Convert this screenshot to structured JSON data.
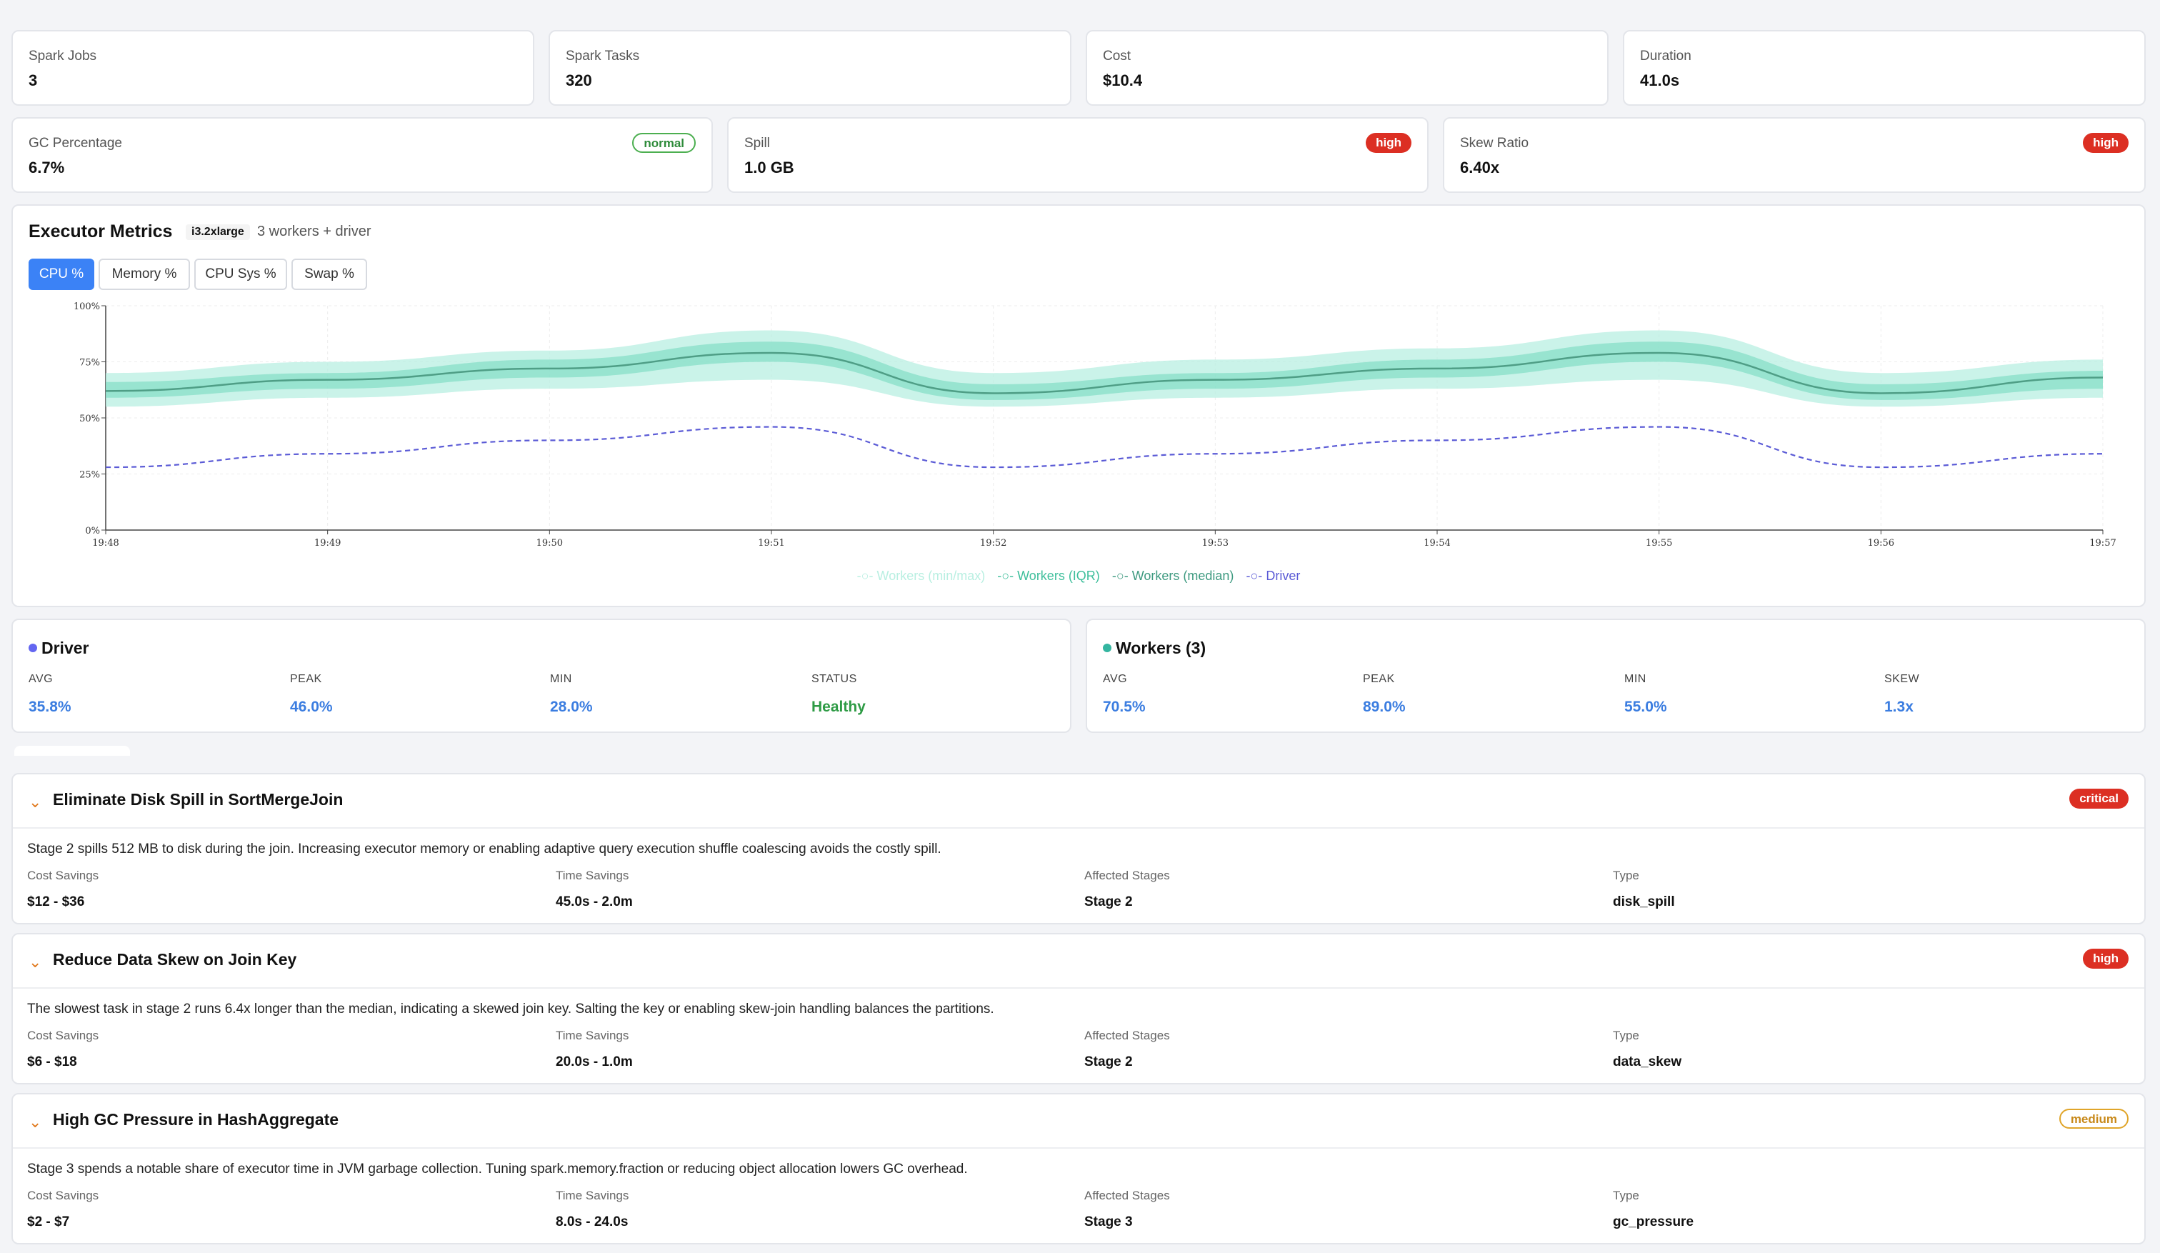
{
  "stats_row1": [
    {
      "label": "Spark Jobs",
      "value": "3"
    },
    {
      "label": "Spark Tasks",
      "value": "320"
    },
    {
      "label": "Cost",
      "value": "$10.4"
    },
    {
      "label": "Duration",
      "value": "41.0s"
    }
  ],
  "stats_row2": [
    {
      "label": "GC Percentage",
      "value": "6.7%",
      "badge": "normal"
    },
    {
      "label": "Spill",
      "value": "1.0 GB",
      "badge": "high"
    },
    {
      "label": "Skew Ratio",
      "value": "6.40x",
      "badge": "high"
    }
  ],
  "executor": {
    "title": "Executor Metrics",
    "instance_type": "i3.2xlarge",
    "instance_desc": "3 workers + driver",
    "tabs": [
      "CPU %",
      "Memory %",
      "CPU Sys %",
      "Swap %"
    ],
    "active_tab": "CPU %"
  },
  "chart_data": {
    "type": "line",
    "title": "",
    "xlabel": "",
    "ylabel": "",
    "x": [
      "19:48",
      "19:49",
      "19:50",
      "19:51",
      "19:52",
      "19:53",
      "19:54",
      "19:55",
      "19:56",
      "19:57"
    ],
    "y_ticks": [
      "0%",
      "25%",
      "50%",
      "75%",
      "100%"
    ],
    "ylim": [
      0,
      100
    ],
    "grid": true,
    "legend_position": "bottom",
    "series": [
      {
        "name": "Workers (min/max)",
        "color": "#b8efe1",
        "lower": [
          55,
          59,
          63,
          67,
          55,
          59,
          63,
          67,
          55,
          59
        ],
        "upper": [
          70,
          75,
          80,
          89,
          70,
          76,
          81,
          89,
          70,
          76
        ]
      },
      {
        "name": "Workers (IQR)",
        "color": "#7ddcc3",
        "lower": [
          59,
          63,
          68,
          75,
          58,
          63,
          68,
          75,
          58,
          63
        ],
        "upper": [
          66,
          70,
          76,
          84,
          65,
          70,
          76,
          84,
          65,
          71
        ]
      },
      {
        "name": "Workers (median)",
        "color": "#4f9e86",
        "values": [
          62,
          67,
          72,
          79,
          61,
          67,
          72,
          79,
          61,
          68
        ]
      },
      {
        "name": "Driver",
        "color": "#5b5bd6",
        "values": [
          28,
          34,
          40,
          46,
          28,
          34,
          40,
          46,
          28,
          34
        ]
      }
    ]
  },
  "driver_summary": {
    "title": "Driver",
    "dot_color": "#6366f1",
    "metrics": [
      {
        "label": "AVG",
        "value": "35.8%"
      },
      {
        "label": "PEAK",
        "value": "46.0%"
      },
      {
        "label": "MIN",
        "value": "28.0%"
      },
      {
        "label": "STATUS",
        "value": "Healthy"
      }
    ]
  },
  "workers_summary": {
    "title": "Workers (3)",
    "dot_color": "#34b5a0",
    "metrics": [
      {
        "label": "AVG",
        "value": "70.5%"
      },
      {
        "label": "PEAK",
        "value": "89.0%"
      },
      {
        "label": "MIN",
        "value": "55.0%"
      },
      {
        "label": "SKEW",
        "value": "1.3x"
      }
    ]
  },
  "recommendations": [
    {
      "title": "Eliminate Disk Spill in SortMergeJoin",
      "severity": "critical",
      "description": "Stage 2 spills 512 MB to disk during the join. Increasing executor memory or enabling adaptive query execution shuffle coalescing avoids the costly spill.",
      "fields": [
        {
          "label": "Cost Savings",
          "value": "$12 - $36"
        },
        {
          "label": "Time Savings",
          "value": "45.0s - 2.0m"
        },
        {
          "label": "Affected Stages",
          "value": "Stage 2"
        },
        {
          "label": "Type",
          "value": "disk_spill"
        }
      ]
    },
    {
      "title": "Reduce Data Skew on Join Key",
      "severity": "high",
      "description": "The slowest task in stage 2 runs 6.4x longer than the median, indicating a skewed join key. Salting the key or enabling skew-join handling balances the partitions.",
      "fields": [
        {
          "label": "Cost Savings",
          "value": "$6 - $18"
        },
        {
          "label": "Time Savings",
          "value": "20.0s - 1.0m"
        },
        {
          "label": "Affected Stages",
          "value": "Stage 2"
        },
        {
          "label": "Type",
          "value": "data_skew"
        }
      ]
    },
    {
      "title": "High GC Pressure in HashAggregate",
      "severity": "medium",
      "description": "Stage 3 spends a notable share of executor time in JVM garbage collection. Tuning spark.memory.fraction or reducing object allocation lowers GC overhead.",
      "fields": [
        {
          "label": "Cost Savings",
          "value": "$2 - $7"
        },
        {
          "label": "Time Savings",
          "value": "8.0s - 24.0s"
        },
        {
          "label": "Affected Stages",
          "value": "Stage 3"
        },
        {
          "label": "Type",
          "value": "gc_pressure"
        }
      ]
    }
  ]
}
